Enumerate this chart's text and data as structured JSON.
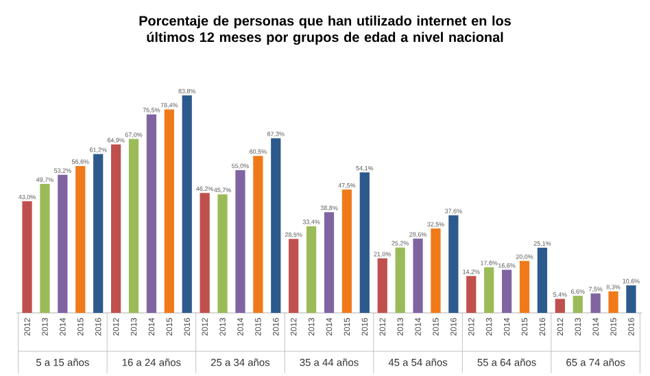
{
  "chart_data": {
    "type": "bar",
    "title": "Porcentaje de personas que han utilizado internet en los últimos 12 meses por grupos de edad a nivel nacional",
    "categories": [
      "5 a 15 años",
      "16 a 24 años",
      "25 a 34 años",
      "35 a 44 años",
      "45 a 54 años",
      "55 a 64 años",
      "65 a 74 años"
    ],
    "series": [
      {
        "name": "2012",
        "color": "#c0504d",
        "values": [
          43.0,
          64.9,
          46.2,
          28.5,
          21.0,
          14.2,
          5.4
        ],
        "value_labels": [
          "43,0%",
          "64,9%",
          "46,2%",
          "28,5%",
          "21,0%",
          "14,2%",
          "5,4%"
        ]
      },
      {
        "name": "2013",
        "color": "#9bbb59",
        "values": [
          49.7,
          67.0,
          45.7,
          33.4,
          25.2,
          17.6,
          6.6
        ],
        "value_labels": [
          "49,7%",
          "67,0%",
          "45,7%",
          "33,4%",
          "25,2%",
          "17,6%",
          "6,6%"
        ]
      },
      {
        "name": "2014",
        "color": "#8064a2",
        "values": [
          53.2,
          76.5,
          55.0,
          38.8,
          28.6,
          16.6,
          7.5
        ],
        "value_labels": [
          "53,2%",
          "76,5%",
          "55,0%",
          "38,8%",
          "28,6%",
          "16,6%",
          "7,5%"
        ]
      },
      {
        "name": "2015",
        "color": "#f07a1a",
        "values": [
          56.6,
          78.4,
          60.5,
          47.5,
          32.5,
          20.0,
          8.3
        ],
        "value_labels": [
          "56,6%",
          "78,4%",
          "60,5%",
          "47,5%",
          "32,5%",
          "20,0%",
          "8,3%"
        ]
      },
      {
        "name": "2016",
        "color": "#2d5a8c",
        "values": [
          61.2,
          83.8,
          67.3,
          54.1,
          37.6,
          25.1,
          10.6
        ],
        "value_labels": [
          "61,2%",
          "83,8%",
          "67,3%",
          "54,1%",
          "37,6%",
          "25,1%",
          "10,6%"
        ]
      }
    ],
    "legend": false
  }
}
